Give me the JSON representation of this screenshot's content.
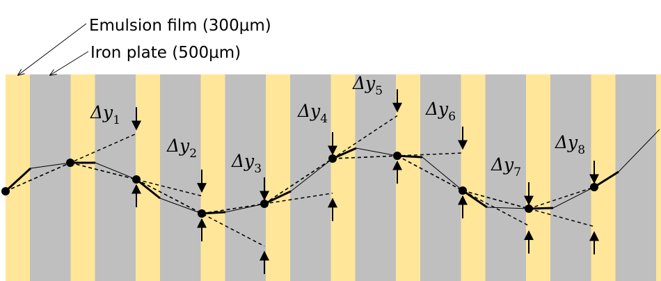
{
  "legend": {
    "emulsion": "Emulsion film (300μm)",
    "iron": "Iron plate (500μm)"
  },
  "labels": [
    {
      "base": "Δy",
      "sub": "1"
    },
    {
      "base": "Δy",
      "sub": "2"
    },
    {
      "base": "Δy",
      "sub": "3"
    },
    {
      "base": "Δy",
      "sub": "4"
    },
    {
      "base": "Δy",
      "sub": "5"
    },
    {
      "base": "Δy",
      "sub": "6"
    },
    {
      "base": "Δy",
      "sub": "7"
    },
    {
      "base": "Δy",
      "sub": "8"
    }
  ]
}
